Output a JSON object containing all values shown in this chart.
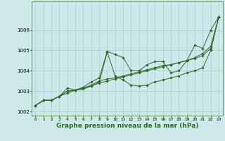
{
  "background_color": "#cce8e8",
  "grid_color": "#aacece",
  "line_color": "#2d6a2d",
  "xlabel": "Graphe pression niveau de la mer (hPa)",
  "xlabel_fontsize": 6.5,
  "xlim": [
    -0.5,
    23.5
  ],
  "ylim": [
    1001.8,
    1007.4
  ],
  "yticks": [
    1002,
    1003,
    1004,
    1005,
    1006
  ],
  "xticks": [
    0,
    1,
    2,
    3,
    4,
    5,
    6,
    7,
    8,
    9,
    10,
    11,
    12,
    13,
    14,
    15,
    16,
    17,
    18,
    19,
    20,
    21,
    22,
    23
  ],
  "series": [
    [
      1002.3,
      1002.55,
      1002.55,
      1002.75,
      1002.9,
      1003.05,
      1003.2,
      1003.45,
      1003.65,
      1004.95,
      1004.8,
      1004.65,
      1004.0,
      1004.0,
      1004.3,
      1004.45,
      1004.45,
      1003.9,
      1004.0,
      1004.5,
      1005.25,
      1005.1,
      1006.0,
      1006.65
    ],
    [
      1002.3,
      1002.55,
      1002.55,
      1002.75,
      1003.15,
      1003.05,
      1003.15,
      1003.25,
      1003.45,
      1004.9,
      1003.75,
      1003.55,
      1003.3,
      1003.25,
      1003.3,
      1003.45,
      1003.55,
      1003.65,
      1003.75,
      1003.9,
      1004.0,
      1004.15,
      1005.0,
      1006.65
    ],
    [
      1002.3,
      1002.55,
      1002.55,
      1002.75,
      1003.0,
      1003.05,
      1003.15,
      1003.3,
      1003.5,
      1003.6,
      1003.65,
      1003.75,
      1003.85,
      1003.95,
      1004.05,
      1004.15,
      1004.25,
      1004.3,
      1004.4,
      1004.5,
      1004.6,
      1004.75,
      1005.1,
      1006.65
    ],
    [
      1002.3,
      1002.55,
      1002.55,
      1002.75,
      1003.0,
      1003.05,
      1003.1,
      1003.25,
      1003.4,
      1003.5,
      1003.6,
      1003.7,
      1003.8,
      1003.9,
      1004.0,
      1004.1,
      1004.2,
      1004.3,
      1004.4,
      1004.5,
      1004.65,
      1004.85,
      1005.2,
      1006.65
    ]
  ]
}
